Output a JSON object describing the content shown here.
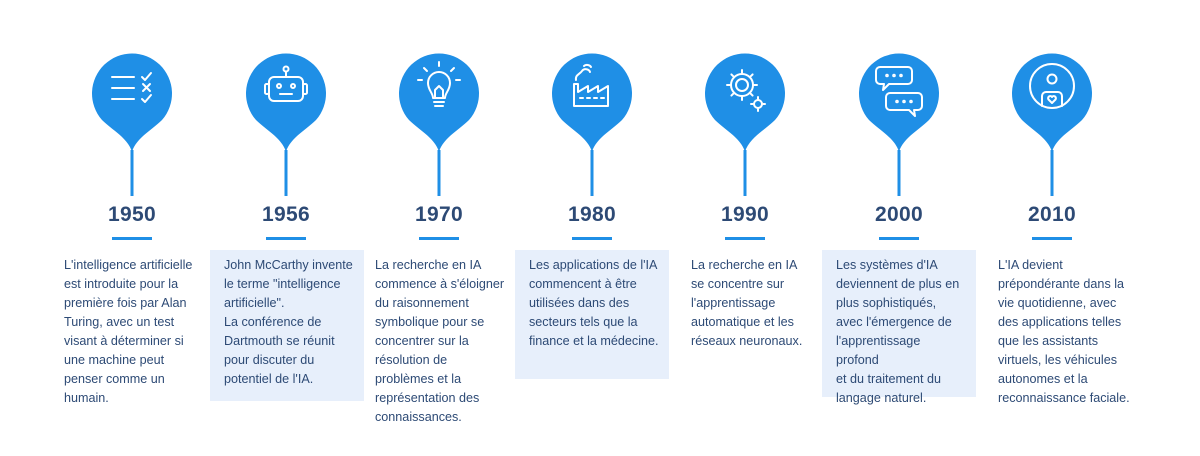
{
  "colors": {
    "accent": "#1f8fe6",
    "text": "#2d4a75",
    "box": "#e7effb"
  },
  "milestones": [
    {
      "year": "1950",
      "icon": "checklist-icon",
      "boxed": false,
      "text": "L'intelligence artificielle\nest introduite pour la\npremière fois par Alan\nTuring, avec un test\nvisant à déterminer si\nune machine peut\npenser comme un\nhumain."
    },
    {
      "year": "1956",
      "icon": "robot-icon",
      "boxed": true,
      "text": "John McCarthy invente\nle terme \"intelligence\nartificielle\".\nLa conférence de\nDartmouth se réunit\npour discuter du\npotentiel de l'IA."
    },
    {
      "year": "1970",
      "icon": "lightbulb-icon",
      "boxed": false,
      "text": "La recherche en IA\ncommence à s'éloigner\ndu raisonnement\nsymbolique pour se\nconcentrer sur la\nrésolution de\nproblèmes et la\nreprésentation des\nconnaissances."
    },
    {
      "year": "1980",
      "icon": "factory-icon",
      "boxed": true,
      "text": "Les applications de l'IA\ncommencent à être\nutilisées dans des\nsecteurs tels que la\nfinance et la médecine."
    },
    {
      "year": "1990",
      "icon": "gears-icon",
      "boxed": false,
      "text": "La recherche en IA\nse concentre sur\nl'apprentissage\nautomatique et les\nréseaux neuronaux."
    },
    {
      "year": "2000",
      "icon": "chat-bubbles-icon",
      "boxed": true,
      "text": "Les systèmes d'IA\ndeviennent de plus en\nplus sophistiqués,\navec l'émergence de\nl'apprentissage profond\net du traitement du\nlangage naturel."
    },
    {
      "year": "2010",
      "icon": "assistant-icon",
      "boxed": false,
      "text": "L'IA devient\nprépondérante dans la\nvie quotidienne, avec\ndes applications telles\nque les assistants\nvirtuels, les véhicules\nautonomes et la\nreconnaissance faciale."
    }
  ]
}
